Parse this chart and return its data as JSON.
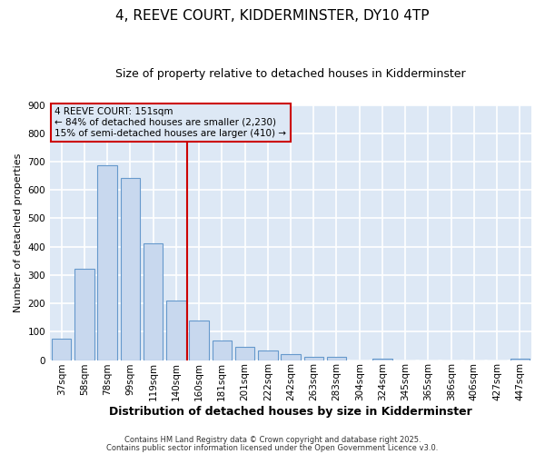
{
  "title_line1": "4, REEVE COURT, KIDDERMINSTER, DY10 4TP",
  "title_line2": "Size of property relative to detached houses in Kidderminster",
  "xlabel": "Distribution of detached houses by size in Kidderminster",
  "ylabel": "Number of detached properties",
  "categories": [
    "37sqm",
    "58sqm",
    "78sqm",
    "99sqm",
    "119sqm",
    "140sqm",
    "160sqm",
    "181sqm",
    "201sqm",
    "222sqm",
    "242sqm",
    "263sqm",
    "283sqm",
    "304sqm",
    "324sqm",
    "345sqm",
    "365sqm",
    "386sqm",
    "406sqm",
    "427sqm",
    "447sqm"
  ],
  "values": [
    75,
    323,
    686,
    641,
    412,
    210,
    138,
    68,
    46,
    33,
    20,
    11,
    10,
    0,
    5,
    0,
    0,
    0,
    0,
    0,
    5
  ],
  "bar_color": "#c8d8ee",
  "bar_edge_color": "#6699cc",
  "plot_bg_color": "#dde8f5",
  "fig_bg_color": "#ffffff",
  "grid_color": "#ffffff",
  "vline_x": 5.5,
  "vline_color": "#cc0000",
  "annotation_text_line1": "4 REEVE COURT: 151sqm",
  "annotation_text_line2": "← 84% of detached houses are smaller (2,230)",
  "annotation_text_line3": "15% of semi-detached houses are larger (410) →",
  "annotation_box_edge_color": "#cc0000",
  "footer_line1": "Contains HM Land Registry data © Crown copyright and database right 2025.",
  "footer_line2": "Contains public sector information licensed under the Open Government Licence v3.0.",
  "ylim": [
    0,
    900
  ],
  "yticks": [
    0,
    100,
    200,
    300,
    400,
    500,
    600,
    700,
    800,
    900
  ],
  "title1_fontsize": 11,
  "title2_fontsize": 9,
  "xlabel_fontsize": 9,
  "ylabel_fontsize": 8,
  "tick_fontsize": 7.5,
  "ann_fontsize": 7.5,
  "footer_fontsize": 6
}
